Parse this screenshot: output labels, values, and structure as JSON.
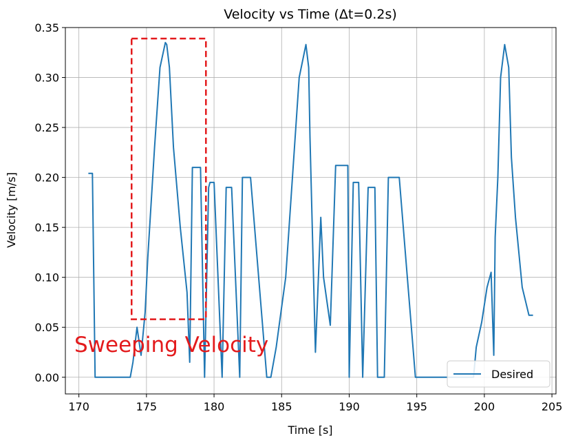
{
  "chart_data": {
    "type": "line",
    "title": "Velocity vs Time (Δt=0.2s)",
    "xlabel": "Time [s]",
    "ylabel": "Velocity [m/s]",
    "xlim": [
      169.0,
      205.3
    ],
    "ylim": [
      -0.0167,
      0.35
    ],
    "xticks": [
      170,
      175,
      180,
      185,
      190,
      195,
      200,
      205
    ],
    "xtick_labels": [
      "170",
      "175",
      "180",
      "185",
      "190",
      "195",
      "200",
      "205"
    ],
    "yticks": [
      0.0,
      0.05,
      0.1,
      0.15,
      0.2,
      0.25,
      0.3,
      0.35
    ],
    "ytick_labels": [
      "0.00",
      "0.05",
      "0.10",
      "0.15",
      "0.20",
      "0.25",
      "0.30",
      "0.35"
    ],
    "grid": true,
    "legend": {
      "position": "lower-right",
      "entries": [
        "Desired"
      ]
    },
    "series_color": "#1f77b4",
    "series": [
      {
        "name": "Desired",
        "x": [
          170.7,
          171.0,
          171.2,
          171.4,
          173.8,
          174.0,
          174.3,
          174.6,
          174.9,
          175.1,
          175.6,
          176.0,
          176.4,
          176.5,
          176.7,
          177.0,
          177.5,
          178.0,
          178.2,
          178.4,
          178.6,
          178.8,
          179.0,
          179.3,
          179.6,
          179.7,
          179.9,
          180.0,
          180.6,
          180.9,
          181.1,
          181.3,
          181.9,
          182.1,
          182.3,
          182.6,
          182.7,
          183.9,
          184.0,
          184.2,
          184.6,
          184.8,
          185.3,
          185.8,
          186.3,
          186.8,
          187.0,
          187.1,
          187.5,
          187.9,
          188.1,
          188.6,
          189.0,
          189.1,
          189.2,
          189.9,
          190.0,
          190.3,
          190.5,
          190.7,
          191.0,
          191.4,
          191.6,
          191.9,
          192.1,
          192.6,
          192.9,
          193.1,
          193.4,
          193.7,
          194.9,
          195.1,
          195.5,
          199.2,
          199.4,
          199.8,
          200.2,
          200.5,
          200.7,
          200.8,
          201.0,
          201.2,
          201.5,
          201.8,
          202.0,
          202.3,
          202.8,
          203.3,
          203.6
        ],
        "values": [
          0.204,
          0.204,
          0.0,
          0.0,
          0.0,
          0.015,
          0.05,
          0.022,
          0.065,
          0.12,
          0.23,
          0.31,
          0.335,
          0.333,
          0.31,
          0.23,
          0.15,
          0.085,
          0.015,
          0.21,
          0.21,
          0.21,
          0.21,
          0.0,
          0.19,
          0.195,
          0.195,
          0.195,
          0.0,
          0.19,
          0.19,
          0.19,
          0.0,
          0.2,
          0.2,
          0.2,
          0.2,
          0.0,
          0.0,
          0.0,
          0.03,
          0.05,
          0.1,
          0.2,
          0.3,
          0.333,
          0.31,
          0.24,
          0.025,
          0.16,
          0.1,
          0.052,
          0.212,
          0.212,
          0.212,
          0.212,
          0.0,
          0.195,
          0.195,
          0.195,
          0.0,
          0.19,
          0.19,
          0.19,
          0.0,
          0.0,
          0.2,
          0.2,
          0.2,
          0.2,
          0.0,
          0.0,
          0.0,
          0.0,
          0.03,
          0.055,
          0.09,
          0.105,
          0.022,
          0.14,
          0.2,
          0.3,
          0.333,
          0.31,
          0.22,
          0.16,
          0.09,
          0.062,
          0.062
        ]
      }
    ],
    "annotation": {
      "text": "Sweeping Velocity",
      "color": "#e31a1c",
      "box_style": "dashed",
      "box_x": [
        173.9,
        179.4
      ],
      "box_y": [
        0.058,
        0.339
      ]
    }
  }
}
